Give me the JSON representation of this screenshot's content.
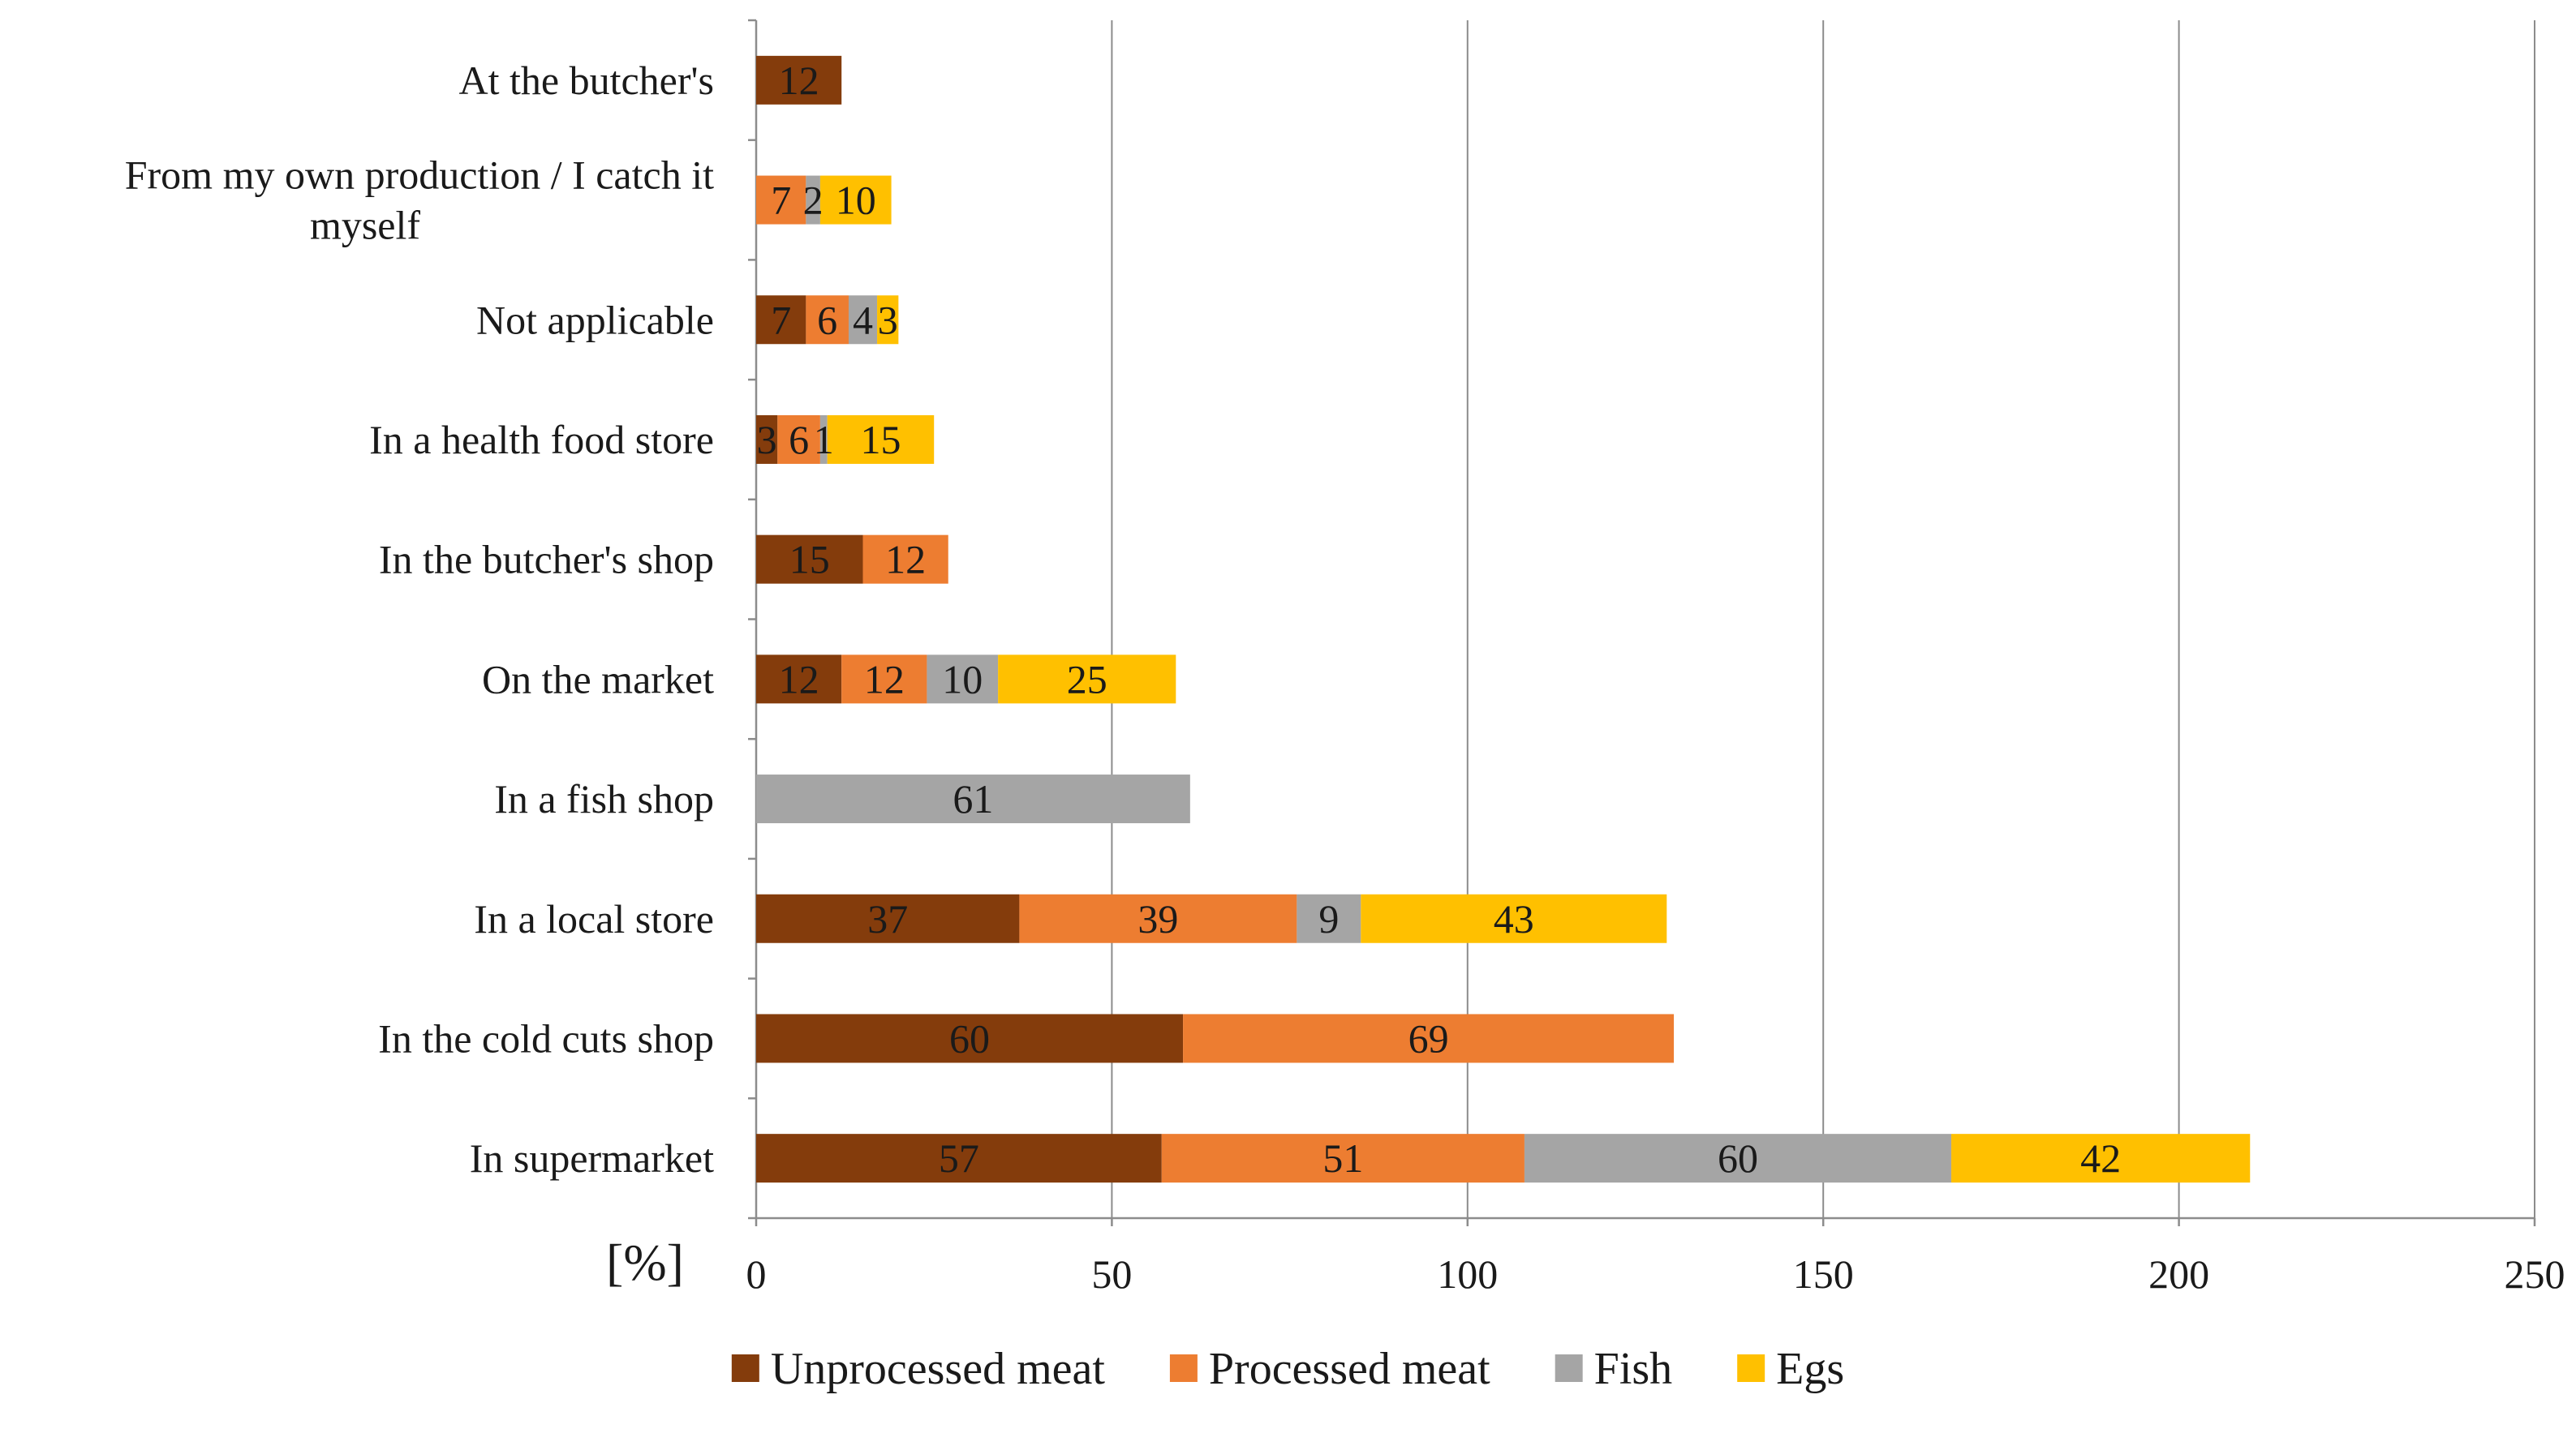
{
  "chart_data": {
    "type": "bar",
    "orientation": "horizontal",
    "stacked": true,
    "categories": [
      "At the butcher's",
      "From my own production / I catch it myself",
      "Not applicable",
      "In a health food store",
      "In the butcher's shop",
      "On the market",
      "In a fish shop",
      "In a local store",
      "In the cold cuts shop",
      "In supermarket"
    ],
    "category_lines": [
      [
        "At the butcher's"
      ],
      [
        "From my own production / I catch it",
        "myself"
      ],
      [
        "Not applicable"
      ],
      [
        "In a health food store"
      ],
      [
        "In the butcher's shop"
      ],
      [
        "On the market"
      ],
      [
        "In a fish shop"
      ],
      [
        "In a local store"
      ],
      [
        "In the cold cuts shop"
      ],
      [
        "In supermarket"
      ]
    ],
    "series": [
      {
        "name": "Unprocessed meat",
        "color": "#843C0C",
        "values": [
          12,
          0,
          7,
          3,
          15,
          12,
          0,
          37,
          60,
          57
        ]
      },
      {
        "name": "Processed meat",
        "color": "#ED7D31",
        "values": [
          0,
          7,
          6,
          6,
          12,
          12,
          0,
          39,
          69,
          51
        ]
      },
      {
        "name": "Fish",
        "color": "#A5A5A5",
        "values": [
          0,
          2,
          4,
          1,
          0,
          10,
          61,
          9,
          0,
          60
        ]
      },
      {
        "name": "Egs",
        "color": "#FFC000",
        "values": [
          0,
          10,
          3,
          15,
          0,
          25,
          0,
          43,
          0,
          42
        ]
      }
    ],
    "xlim": [
      0,
      250
    ],
    "xticks": [
      0,
      50,
      100,
      150,
      200,
      250
    ],
    "xticklabels": [
      "0",
      "50",
      "100",
      "150",
      "200",
      "250"
    ],
    "unit_label": "[%]",
    "grid": "vertical",
    "legend_position": "bottom"
  }
}
